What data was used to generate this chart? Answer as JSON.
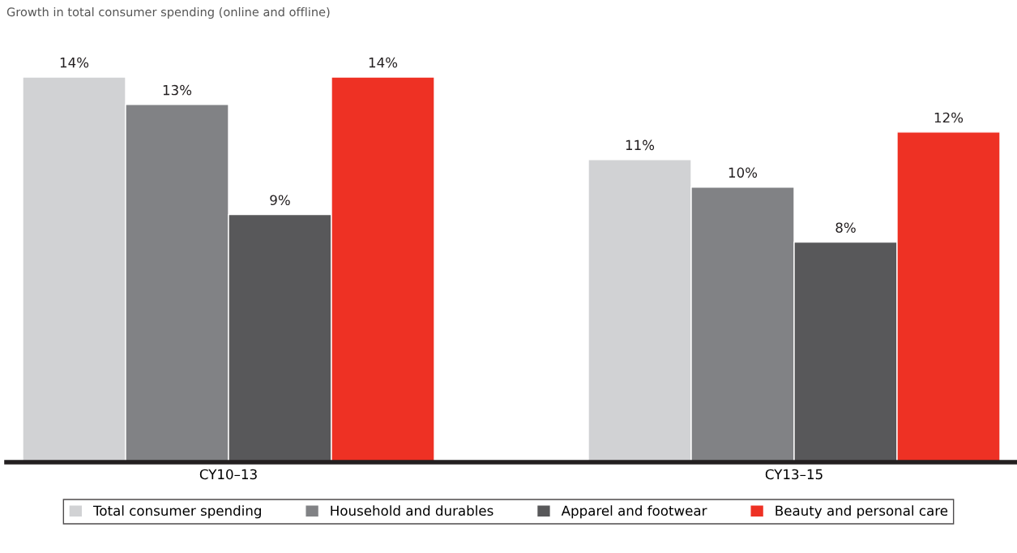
{
  "chart_data": {
    "type": "bar",
    "title": "Growth in total consumer spending (online and offline)",
    "categories": [
      "CY10–13",
      "CY13–15"
    ],
    "series": [
      {
        "name": "Total consumer spending",
        "color": "#d1d2d4",
        "values": [
          14,
          11
        ],
        "value_labels": [
          "14%",
          "11%"
        ]
      },
      {
        "name": "Household and durables",
        "color": "#818285",
        "values": [
          13,
          10
        ],
        "value_labels": [
          "13%",
          "10%"
        ]
      },
      {
        "name": "Apparel and footwear",
        "color": "#58585a",
        "values": [
          9,
          8
        ],
        "value_labels": [
          "9%",
          "8%"
        ]
      },
      {
        "name": "Beauty and personal care",
        "color": "#ee3124",
        "values": [
          14,
          12
        ],
        "value_labels": [
          "14%",
          "12%"
        ]
      }
    ],
    "legend": "bottom",
    "grid": false
  }
}
